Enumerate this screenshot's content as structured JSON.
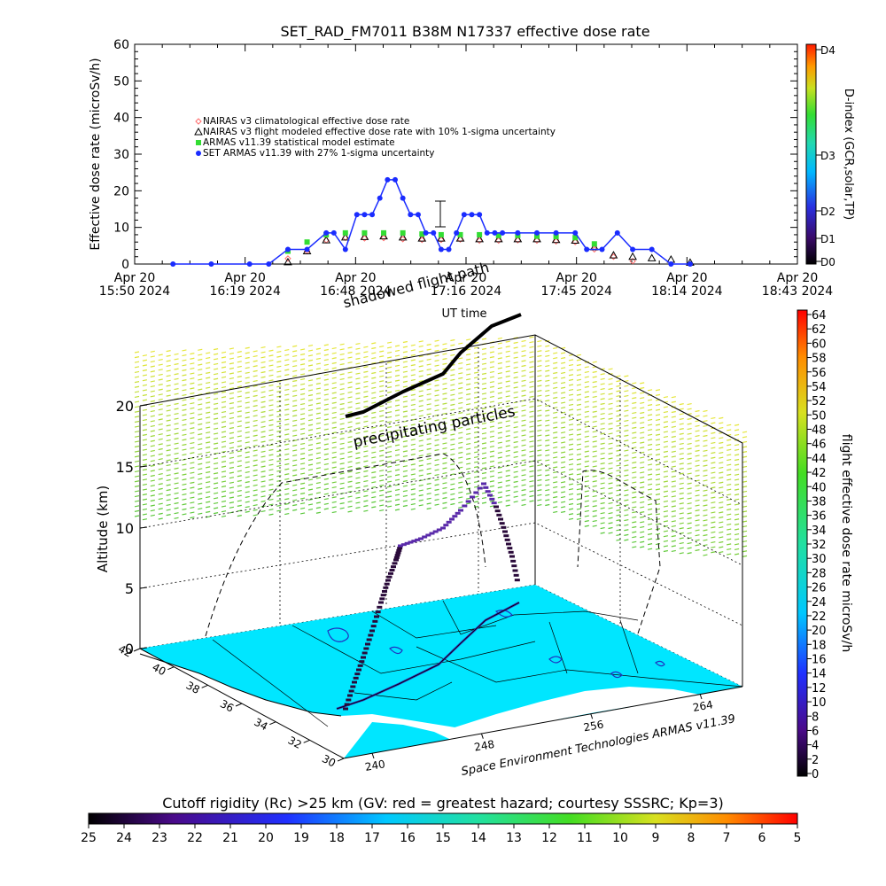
{
  "title": "SET_RAD_FM7011   B38M N17337 effective dose rate",
  "top_chart": {
    "ylabel": "Effective dose rate (microSv/h)",
    "xlabel": "UT time",
    "y_ticks": [
      "0",
      "10",
      "20",
      "30",
      "40",
      "50",
      "60"
    ],
    "x_ticks": [
      {
        "line1": "Apr 20",
        "line2": "15:50 2024"
      },
      {
        "line1": "Apr 20",
        "line2": "16:19 2024"
      },
      {
        "line1": "Apr 20",
        "line2": "16:48 2024"
      },
      {
        "line1": "Apr 20",
        "line2": "17:16 2024"
      },
      {
        "line1": "Apr 20",
        "line2": "17:45 2024"
      },
      {
        "line1": "Apr 20",
        "line2": "18:14 2024"
      },
      {
        "line1": "Apr 20",
        "line2": "18:43 2024"
      }
    ],
    "legend": [
      "NAIRAS v3 climatological effective dose rate",
      "NAIRAS v3 flight modeled effective dose rate with 10% 1-sigma uncertainty",
      "ARMAS v11.39 statistical model estimate",
      "SET ARMAS v11.39 with 27% 1-sigma uncertainty"
    ],
    "dindex_label": "D-index (GCR,solar,TP)",
    "dindex_ticks": [
      "D4",
      "D3",
      "D2",
      "D1",
      "D0"
    ]
  },
  "annotations": {
    "shadowed_flight_path": "shadowed flight path",
    "precipitating_particles": "precipitating particles"
  },
  "map": {
    "altitude_label": "Altitude (km)",
    "alt_ticks": [
      "0",
      "5",
      "10",
      "15",
      "20"
    ],
    "lat_ticks": [
      "42",
      "40",
      "38",
      "36",
      "34",
      "32",
      "30"
    ],
    "lon_ticks": [
      "240",
      "248",
      "256",
      "264"
    ],
    "credit": "Space Environment Technologies ARMAS v11.39"
  },
  "right_colorbar": {
    "label": "flight effective dose rate microSv/h",
    "ticks": [
      "64",
      "62",
      "60",
      "58",
      "56",
      "54",
      "52",
      "50",
      "48",
      "46",
      "44",
      "42",
      "40",
      "38",
      "36",
      "34",
      "32",
      "30",
      "28",
      "26",
      "24",
      "22",
      "20",
      "18",
      "16",
      "14",
      "12",
      "10",
      "8",
      "6",
      "4",
      "2",
      "0"
    ]
  },
  "bottom_colorbar": {
    "label": "Cutoff rigidity (Rc) >25 km (GV: red = greatest hazard; courtesy SSSRC; Kp=3)",
    "ticks": [
      "25",
      "24",
      "23",
      "22",
      "21",
      "20",
      "19",
      "18",
      "17",
      "16",
      "15",
      "14",
      "13",
      "12",
      "11",
      "10",
      "9",
      "8",
      "7",
      "6",
      "5"
    ]
  },
  "chart_data": {
    "type": "scatter",
    "title": "SET_RAD_FM7011   B38M N17337 effective dose rate",
    "xlabel": "UT time",
    "ylabel": "Effective dose rate (microSv/h)",
    "x_unit": "UT (Apr 20 2024)",
    "xlim": [
      "15:50",
      "18:43"
    ],
    "ylim": [
      0,
      60
    ],
    "grid": false,
    "legend_position": "upper-left",
    "series": [
      {
        "name": "NAIRAS v3 climatological effective dose rate",
        "marker": "diamond",
        "color": "#ff6a6a",
        "x": [
          "16:30",
          "16:35",
          "16:40",
          "16:45",
          "16:50",
          "16:55",
          "17:00",
          "17:05",
          "17:10",
          "17:15",
          "17:20",
          "17:25",
          "17:30",
          "17:35",
          "17:40",
          "17:45",
          "17:50",
          "17:55",
          "18:00"
        ],
        "y": [
          1.5,
          3.5,
          6.5,
          7.2,
          7.0,
          7.1,
          6.8,
          6.6,
          6.6,
          6.7,
          6.4,
          6.4,
          6.5,
          6.4,
          6.2,
          6.0,
          4.0,
          2.0,
          0.8
        ]
      },
      {
        "name": "NAIRAS v3 flight modeled effective dose rate with 10% 1-sigma uncertainty",
        "marker": "triangle",
        "color": "#000000",
        "x": [
          "16:30",
          "16:35",
          "16:40",
          "16:45",
          "16:50",
          "16:55",
          "17:00",
          "17:05",
          "17:10",
          "17:15",
          "17:20",
          "17:25",
          "17:30",
          "17:35",
          "17:40",
          "17:45",
          "17:50",
          "17:55",
          "18:00",
          "18:05",
          "18:10",
          "18:15"
        ],
        "y": [
          0.5,
          3.5,
          6.5,
          7.3,
          7.4,
          7.6,
          7.3,
          7.0,
          7.0,
          7.0,
          6.8,
          6.8,
          6.8,
          6.8,
          6.6,
          6.4,
          4.6,
          2.4,
          2.0,
          1.6,
          1.2,
          0.4
        ]
      },
      {
        "name": "ARMAS v11.39 statistical model estimate",
        "marker": "square",
        "color": "#33dd33",
        "x": [
          "16:30",
          "16:35",
          "16:40",
          "16:45",
          "16:50",
          "16:55",
          "17:00",
          "17:05",
          "17:10",
          "17:15",
          "17:20",
          "17:25",
          "17:30",
          "17:35",
          "17:40",
          "17:45",
          "17:50"
        ],
        "y": [
          3.5,
          6.0,
          8.0,
          8.5,
          8.5,
          8.5,
          8.5,
          8.2,
          8.0,
          8.0,
          8.0,
          7.8,
          7.8,
          7.6,
          7.5,
          7.2,
          5.5
        ]
      },
      {
        "name": "SET ARMAS v11.39 with 27% 1-sigma uncertainty",
        "marker": "circle",
        "color": "#1a2cff",
        "x": [
          "16:00",
          "16:10",
          "16:20",
          "16:25",
          "16:30",
          "16:35",
          "16:40",
          "16:42",
          "16:45",
          "16:48",
          "16:50",
          "16:52",
          "16:54",
          "16:56",
          "16:58",
          "17:00",
          "17:02",
          "17:04",
          "17:06",
          "17:08",
          "17:10",
          "17:12",
          "17:14",
          "17:16",
          "17:18",
          "17:20",
          "17:22",
          "17:24",
          "17:26",
          "17:30",
          "17:35",
          "17:40",
          "17:45",
          "17:48",
          "17:52",
          "17:56",
          "18:00",
          "18:05",
          "18:10",
          "18:15"
        ],
        "y": [
          0,
          0,
          0,
          0,
          4,
          4,
          8.5,
          8.5,
          4,
          13.5,
          13.5,
          13.5,
          18,
          23,
          23,
          18,
          13.5,
          13.5,
          8.5,
          8.5,
          4,
          4,
          8.5,
          13.5,
          13.5,
          13.5,
          8.5,
          8.5,
          8.5,
          8.5,
          8.5,
          8.5,
          8.5,
          4,
          4,
          8.5,
          4,
          4,
          0,
          0
        ]
      }
    ]
  }
}
